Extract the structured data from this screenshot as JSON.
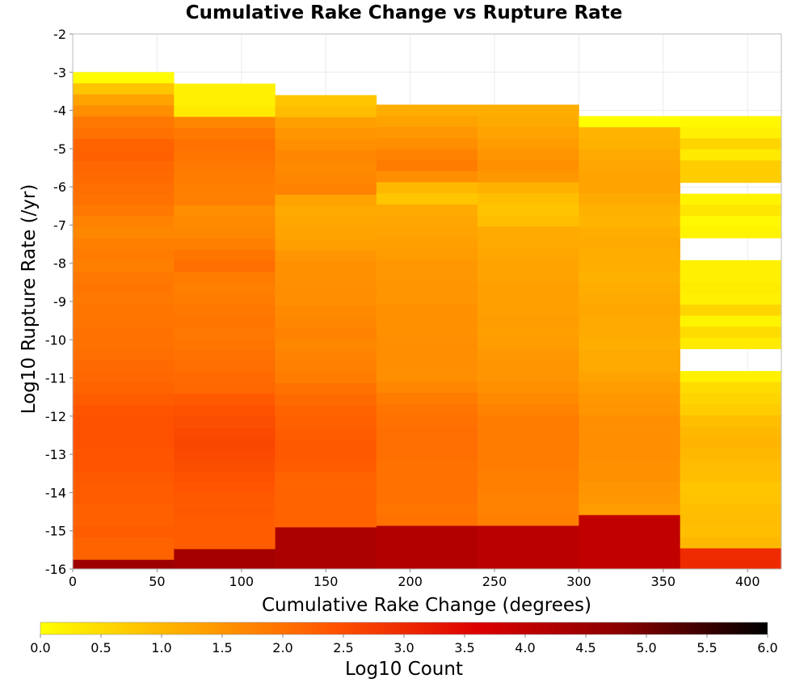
{
  "chart_data": {
    "type": "heatmap",
    "title": "Cumulative Rake Change vs Rupture Rate",
    "xlabel": "Cumulative Rake Change (degrees)",
    "ylabel": "Log10 Rupture Rate (/yr)",
    "xlim": [
      0,
      420
    ],
    "ylim": [
      -16,
      -2
    ],
    "x_ticks": [
      "0",
      "50",
      "100",
      "150",
      "200",
      "250",
      "300",
      "350",
      "400"
    ],
    "x_tick_values": [
      0,
      50,
      100,
      150,
      200,
      250,
      300,
      350,
      400
    ],
    "y_ticks": [
      "-2",
      "-3",
      "-4",
      "-5",
      "-6",
      "-7",
      "-8",
      "-9",
      "-10",
      "-11",
      "-12",
      "-13",
      "-14",
      "-15",
      "-16"
    ],
    "y_tick_values": [
      -2,
      -3,
      -4,
      -5,
      -6,
      -7,
      -8,
      -9,
      -10,
      -11,
      -12,
      -13,
      -14,
      -15,
      -16
    ],
    "x_bin_width": 60,
    "y_bin_height": 0.29,
    "grid": true,
    "colorbar": {
      "label": "Log10 Count",
      "range": [
        0,
        6
      ],
      "ticks": [
        "0.0",
        "0.5",
        "1.0",
        "1.5",
        "2.0",
        "2.5",
        "3.0",
        "3.5",
        "4.0",
        "4.5",
        "5.0",
        "5.5",
        "6.0"
      ],
      "tick_values": [
        0,
        0.5,
        1,
        1.5,
        2,
        2.5,
        3,
        3.5,
        4,
        4.5,
        5,
        5.5,
        6
      ],
      "colors": [
        "#ffff00",
        "#ffaa00",
        "#ff5500",
        "#dd0000",
        "#880000",
        "#000000"
      ]
    },
    "columns": [
      {
        "x_start": 0,
        "y_top": -3.0,
        "values": [
          0.05,
          0.8,
          1.3,
          1.6,
          1.9,
          2.0,
          2.2,
          2.25,
          2.15,
          2.1,
          2.05,
          2.0,
          1.9,
          1.75,
          1.7,
          1.8,
          1.85,
          1.8,
          1.9,
          1.95,
          1.9,
          1.95,
          1.95,
          2.0,
          2.0,
          2.05,
          2.1,
          2.15,
          2.2,
          2.3,
          2.4,
          2.45,
          2.45,
          2.45,
          2.4,
          2.4,
          2.35,
          2.3,
          2.3,
          2.25,
          2.25,
          2.3,
          2.2,
          2.2,
          4.5
        ]
      },
      {
        "x_start": 60,
        "y_top": -3.3,
        "values": [
          0.2,
          0.2,
          0.3,
          1.7,
          1.9,
          2.0,
          1.95,
          1.9,
          1.85,
          1.8,
          1.8,
          1.6,
          1.65,
          1.7,
          1.8,
          1.95,
          2.05,
          1.85,
          1.8,
          1.85,
          1.9,
          1.95,
          1.9,
          1.95,
          2.0,
          2.05,
          2.1,
          2.15,
          2.35,
          2.45,
          2.5,
          2.55,
          2.6,
          2.55,
          2.5,
          2.45,
          2.4,
          2.35,
          2.35,
          2.3,
          2.3,
          2.3,
          4.4
        ]
      },
      {
        "x_start": 120,
        "y_top": -3.6,
        "values": [
          0.8,
          0.95,
          1.35,
          1.5,
          1.6,
          1.7,
          1.65,
          1.7,
          1.75,
          1.3,
          1.2,
          1.25,
          1.3,
          1.35,
          1.5,
          1.55,
          1.55,
          1.6,
          1.6,
          1.65,
          1.7,
          1.75,
          1.7,
          1.75,
          1.8,
          1.85,
          2.0,
          2.1,
          2.2,
          2.25,
          2.3,
          2.35,
          2.35,
          2.3,
          2.2,
          2.2,
          2.2,
          2.2,
          2.2,
          4.3
        ]
      },
      {
        "x_start": 180,
        "y_top": -3.85,
        "values": [
          1.15,
          1.3,
          1.45,
          1.6,
          1.75,
          1.85,
          1.6,
          1.0,
          0.8,
          1.2,
          1.25,
          1.3,
          1.35,
          1.4,
          1.45,
          1.45,
          1.5,
          1.5,
          1.55,
          1.55,
          1.55,
          1.6,
          1.6,
          1.6,
          1.6,
          1.7,
          1.85,
          1.95,
          2.0,
          2.05,
          2.05,
          2.05,
          2.0,
          2.0,
          2.0,
          2.0,
          1.95,
          2.0,
          4.2
        ]
      },
      {
        "x_start": 240,
        "y_top": -3.85,
        "values": [
          1.15,
          1.2,
          1.3,
          1.4,
          1.5,
          1.55,
          1.45,
          1.1,
          0.9,
          0.85,
          0.9,
          1.2,
          1.2,
          1.25,
          1.3,
          1.3,
          1.35,
          1.35,
          1.35,
          1.4,
          1.35,
          1.4,
          1.45,
          1.5,
          1.5,
          1.55,
          1.65,
          1.75,
          1.85,
          1.85,
          1.85,
          1.85,
          1.85,
          1.8,
          1.8,
          1.75,
          1.75,
          1.8,
          4.1
        ]
      },
      {
        "x_start": 300,
        "y_top": -4.15,
        "values": [
          0.0,
          1.05,
          1.1,
          1.2,
          1.25,
          1.3,
          1.3,
          1.2,
          1.1,
          1.05,
          1.15,
          1.2,
          1.15,
          1.15,
          1.1,
          1.15,
          1.2,
          1.25,
          1.2,
          1.2,
          1.15,
          1.2,
          1.2,
          1.3,
          1.4,
          1.45,
          1.5,
          1.6,
          1.6,
          1.6,
          1.6,
          1.55,
          1.55,
          1.5,
          1.45,
          1.4,
          4.0
        ]
      },
      {
        "x_start": 360,
        "y_top": -4.15,
        "values": [
          0.1,
          0.2,
          0.6,
          0.3,
          0.7,
          0.7,
          null,
          0.15,
          0.35,
          0.1,
          0.15,
          null,
          null,
          0.2,
          0.2,
          0.25,
          0.2,
          0.6,
          0.15,
          0.5,
          0.3,
          null,
          null,
          0.2,
          0.5,
          0.6,
          0.7,
          0.9,
          1.0,
          1.05,
          1.0,
          0.95,
          0.9,
          0.8,
          0.85,
          0.9,
          0.95,
          0.9,
          1.0,
          3.0
        ]
      }
    ]
  }
}
